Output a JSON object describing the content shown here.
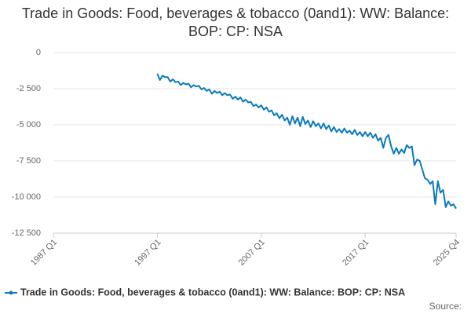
{
  "chart_data": {
    "type": "line",
    "title": "Trade in Goods: Food, beverages & tobacco (0and1): WW: Balance: BOP: CP: NSA",
    "source": "Source:",
    "x": [
      1997,
      1997.25,
      1997.5,
      1997.75,
      1998,
      1998.25,
      1998.5,
      1998.75,
      1999,
      1999.25,
      1999.5,
      1999.75,
      2000,
      2000.25,
      2000.5,
      2000.75,
      2001,
      2001.25,
      2001.5,
      2001.75,
      2002,
      2002.25,
      2002.5,
      2002.75,
      2003,
      2003.25,
      2003.5,
      2003.75,
      2004,
      2004.25,
      2004.5,
      2004.75,
      2005,
      2005.25,
      2005.5,
      2005.75,
      2006,
      2006.25,
      2006.5,
      2006.75,
      2007,
      2007.25,
      2007.5,
      2007.75,
      2008,
      2008.25,
      2008.5,
      2008.75,
      2009,
      2009.25,
      2009.5,
      2009.75,
      2010,
      2010.25,
      2010.5,
      2010.75,
      2011,
      2011.25,
      2011.5,
      2011.75,
      2012,
      2012.25,
      2012.5,
      2012.75,
      2013,
      2013.25,
      2013.5,
      2013.75,
      2014,
      2014.25,
      2014.5,
      2014.75,
      2015,
      2015.25,
      2015.5,
      2015.75,
      2016,
      2016.25,
      2016.5,
      2016.75,
      2017,
      2017.25,
      2017.5,
      2017.75,
      2018,
      2018.25,
      2018.5,
      2018.75,
      2019,
      2019.25,
      2019.5,
      2019.75,
      2020,
      2020.25,
      2020.5,
      2020.75,
      2021,
      2021.25,
      2021.5,
      2021.75,
      2022,
      2022.25,
      2022.5,
      2022.75,
      2023,
      2023.25,
      2023.5,
      2023.75,
      2024,
      2024.25,
      2024.5,
      2024.75,
      2025,
      2025.25,
      2025.5,
      2025.75
    ],
    "series": [
      {
        "name": "Trade in Goods: Food, beverages & tobacco (0and1): WW: Balance: BOP: CP: NSA",
        "color": "#0b7bbb",
        "values": [
          -1450,
          -1900,
          -1600,
          -1700,
          -1700,
          -2000,
          -1850,
          -2050,
          -2000,
          -2250,
          -2100,
          -2200,
          -2150,
          -2400,
          -2250,
          -2350,
          -2300,
          -2550,
          -2450,
          -2650,
          -2550,
          -2850,
          -2650,
          -2800,
          -2700,
          -2950,
          -2800,
          -2950,
          -2900,
          -3200,
          -3050,
          -3250,
          -3100,
          -3400,
          -3250,
          -3450,
          -3400,
          -3700,
          -3600,
          -3800,
          -3650,
          -3950,
          -3800,
          -4100,
          -4000,
          -4350,
          -4200,
          -4550,
          -4300,
          -4700,
          -4500,
          -5000,
          -4400,
          -4900,
          -4500,
          -5100,
          -4450,
          -4950,
          -4700,
          -5150,
          -4750,
          -5100,
          -4900,
          -5250,
          -4900,
          -5300,
          -5050,
          -5450,
          -5150,
          -5500,
          -5300,
          -5550,
          -5250,
          -5550,
          -5400,
          -5650,
          -5350,
          -5700,
          -5500,
          -5800,
          -5500,
          -5800,
          -5550,
          -5900,
          -5650,
          -6100,
          -5900,
          -6600,
          -5900,
          -5700,
          -6500,
          -7000,
          -6600,
          -7000,
          -6700,
          -6950,
          -6400,
          -6600,
          -6500,
          -7800,
          -7400,
          -7500,
          -8100,
          -8700,
          -8800,
          -9100,
          -8900,
          -10500,
          -8900,
          -9700,
          -9500,
          -10700,
          -10300,
          -10600,
          -10500,
          -10800
        ]
      }
    ],
    "xlim": [
      1987,
      2025.75
    ],
    "xticks": [
      {
        "value": 1987,
        "label": "1987 Q1"
      },
      {
        "value": 1997,
        "label": "1997 Q1"
      },
      {
        "value": 2007,
        "label": "2007 Q1"
      },
      {
        "value": 2017,
        "label": "2017 Q1"
      },
      {
        "value": 2025.75,
        "label": "2025 Q4"
      }
    ],
    "ylim": [
      -12500,
      0
    ],
    "yticks": [
      0,
      {
        "value": -2500,
        "label": "-2 500"
      },
      {
        "value": -5000,
        "label": "-5 000"
      },
      {
        "value": -7500,
        "label": "-7 500"
      },
      {
        "value": -10000,
        "label": "-10 000"
      },
      {
        "value": -12500,
        "label": "-12 500"
      }
    ],
    "grid": true
  }
}
